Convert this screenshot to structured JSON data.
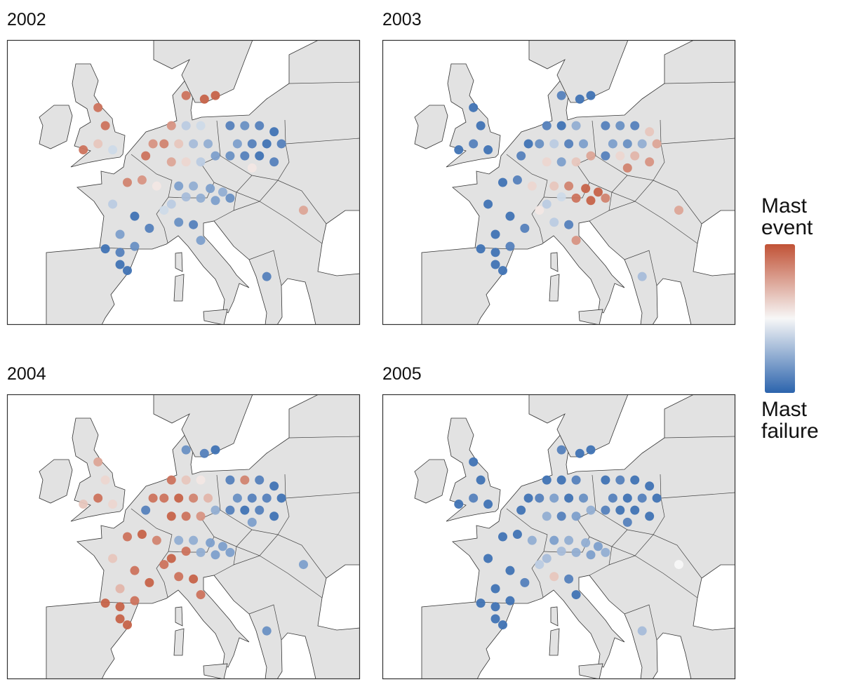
{
  "chart_data": {
    "type": "map",
    "xlim": [
      -14.4,
      33.7
    ],
    "ylim": [
      37,
      60.6
    ],
    "lon": [
      16,
      18,
      20,
      22,
      17,
      19,
      21,
      23,
      16,
      18,
      20,
      22,
      19,
      8,
      10,
      12,
      7,
      9,
      11,
      13,
      8,
      10,
      12,
      14,
      9,
      11,
      13.3,
      15,
      10,
      12,
      14,
      16,
      8,
      7,
      2,
      4,
      6,
      0,
      3,
      5,
      1,
      -1,
      1,
      3,
      4.5,
      5.5,
      -1,
      -2,
      -4,
      0,
      -2,
      1,
      2,
      9,
      11,
      12,
      12.5,
      14,
      10,
      21,
      26
    ],
    "lat": [
      53.5,
      53.5,
      53.5,
      53,
      52,
      52,
      52,
      52,
      51,
      51,
      51,
      50.5,
      50,
      53.5,
      53.5,
      53.5,
      52,
      52,
      52,
      52,
      50.5,
      50.5,
      50.5,
      51,
      48.5,
      48.5,
      48.3,
      48,
      47.6,
      47.5,
      47.3,
      47.5,
      47,
      46.5,
      48.8,
      49,
      48.5,
      47,
      46,
      45,
      44.5,
      43.3,
      43,
      43.5,
      51,
      52,
      53.5,
      52,
      51.5,
      51.5,
      55,
      42,
      41.5,
      45.5,
      45.3,
      44,
      55.7,
      56,
      56,
      41,
      46.5
    ],
    "panels": [
      {
        "title": "2002",
        "values": [
          -0.8,
          -0.7,
          -0.8,
          -0.9,
          -0.6,
          -0.8,
          -0.9,
          -0.8,
          -0.7,
          -0.8,
          -0.9,
          -0.8,
          0.1,
          0.6,
          -0.3,
          -0.2,
          0.7,
          0.3,
          -0.4,
          -0.5,
          0.5,
          0.2,
          -0.3,
          -0.6,
          -0.6,
          -0.5,
          -0.6,
          -0.5,
          -0.4,
          -0.5,
          -0.6,
          -0.7,
          -0.3,
          -0.2,
          0.7,
          0.6,
          0.1,
          -0.3,
          -0.9,
          -0.8,
          -0.6,
          -0.9,
          -0.8,
          -0.7,
          0.8,
          0.6,
          0.8,
          0.3,
          0.8,
          -0.2,
          0.8,
          -0.9,
          -0.9,
          -0.7,
          -0.8,
          -0.6,
          0.9,
          0.9,
          0.8,
          -0.8,
          0.5
        ]
      },
      {
        "title": "2003",
        "values": [
          -0.8,
          -0.7,
          -0.8,
          0.3,
          -0.6,
          -0.7,
          -0.5,
          0.5,
          -0.8,
          0.2,
          0.4,
          0.6,
          0.7,
          -0.8,
          -0.9,
          -0.5,
          -0.7,
          -0.3,
          -0.8,
          -0.6,
          0.2,
          -0.6,
          0.3,
          0.5,
          0.3,
          0.7,
          0.9,
          0.9,
          -0.2,
          0.8,
          0.9,
          0.7,
          -0.3,
          0.1,
          -0.9,
          -0.8,
          0.2,
          -0.9,
          -0.9,
          -0.8,
          -0.9,
          -0.9,
          -0.9,
          -0.8,
          -0.8,
          -0.9,
          -0.9,
          -0.8,
          -0.9,
          -0.9,
          -0.9,
          -0.9,
          -0.9,
          -0.3,
          -0.8,
          0.6,
          -0.9,
          -0.9,
          -0.8,
          -0.4,
          0.5
        ]
      },
      {
        "title": "2004",
        "values": [
          -0.8,
          0.7,
          -0.8,
          -0.9,
          -0.7,
          -0.8,
          -0.8,
          -0.9,
          -0.8,
          -0.9,
          -0.8,
          -0.9,
          -0.6,
          0.8,
          0.3,
          0.1,
          0.8,
          0.9,
          0.7,
          0.4,
          0.9,
          0.8,
          0.6,
          -0.5,
          -0.5,
          -0.5,
          -0.6,
          -0.6,
          0.8,
          -0.5,
          -0.6,
          -0.6,
          0.9,
          0.8,
          0.8,
          0.9,
          0.7,
          0.3,
          0.8,
          0.9,
          0.4,
          0.9,
          0.9,
          0.8,
          -0.8,
          0.8,
          0.2,
          0.8,
          0.3,
          0.2,
          0.5,
          0.9,
          0.9,
          0.8,
          0.9,
          0.8,
          -0.8,
          -0.9,
          -0.7,
          -0.7,
          -0.6
        ]
      },
      {
        "title": "2005",
        "values": [
          -0.9,
          -0.8,
          -0.9,
          -0.9,
          -0.8,
          -0.9,
          -0.8,
          -0.9,
          -0.8,
          -0.9,
          -0.9,
          -0.9,
          -0.8,
          -0.9,
          -0.9,
          -0.8,
          -0.8,
          -0.6,
          -0.9,
          -0.7,
          -0.5,
          -0.8,
          -0.6,
          -0.5,
          -0.6,
          -0.5,
          -0.5,
          -0.6,
          -0.4,
          -0.5,
          -0.6,
          -0.5,
          -0.4,
          -0.3,
          -0.9,
          -0.9,
          -0.5,
          -0.9,
          -0.9,
          -0.8,
          -0.9,
          -0.9,
          -0.9,
          -0.9,
          -0.9,
          -0.9,
          -0.9,
          -0.8,
          -0.9,
          -0.9,
          -0.9,
          -0.9,
          -0.9,
          0.3,
          -0.8,
          -0.9,
          -0.9,
          -0.9,
          -0.8,
          -0.4,
          0.0
        ]
      }
    ],
    "colorbar": {
      "high_label": "Mast event",
      "low_label": "Mast failure",
      "range": [
        -1,
        1
      ],
      "colors": [
        "#2c64ad",
        "#f7f7f7",
        "#c15236"
      ]
    }
  }
}
